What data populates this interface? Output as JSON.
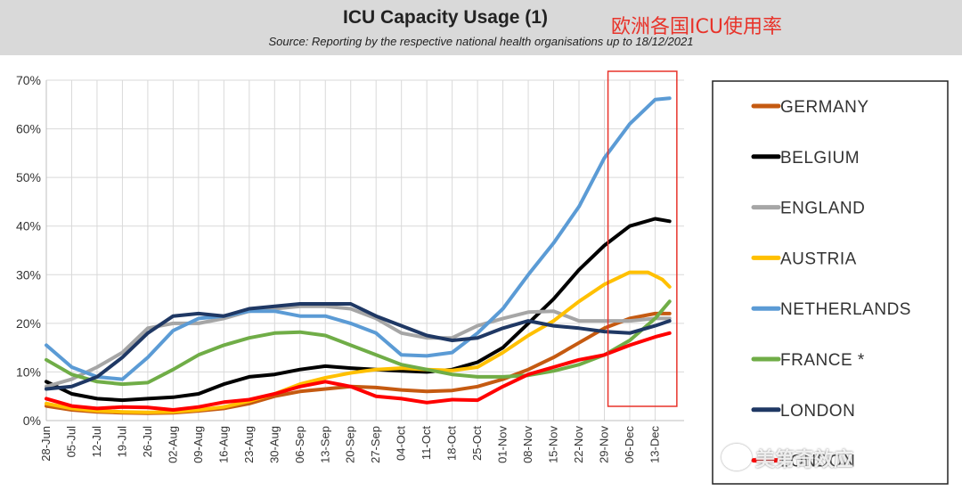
{
  "chart_data": {
    "type": "line",
    "title": "ICU Capacity Usage (1)",
    "subtitle": "Source: Reporting by the respective national health organisations up to 18/12/2021",
    "annotation_cn": "欧洲各国ICU使用率",
    "watermark": "美第奇效应",
    "ylim": [
      0,
      70
    ],
    "yticks": [
      0,
      10,
      20,
      30,
      40,
      50,
      60,
      70
    ],
    "ytick_labels": [
      "0%",
      "10%",
      "20%",
      "30%",
      "40%",
      "50%",
      "60%",
      "70%"
    ],
    "x_start_day": 0,
    "x_end_day": 176,
    "xtick_days": [
      0,
      7,
      14,
      21,
      28,
      35,
      42,
      49,
      56,
      63,
      70,
      77,
      84,
      91,
      98,
      105,
      112,
      119,
      126,
      133,
      140,
      147,
      154,
      161,
      168
    ],
    "xtick_labels": [
      "28-Jun",
      "05-Jul",
      "12-Jul",
      "19-Jul",
      "26-Jul",
      "02-Aug",
      "09-Aug",
      "16-Aug",
      "23-Aug",
      "30-Aug",
      "06-Sep",
      "13-Sep",
      "20-Sep",
      "27-Sep",
      "04-Oct",
      "11-Oct",
      "18-Oct",
      "25-Oct",
      "01-Nov",
      "08-Nov",
      "15-Nov",
      "22-Nov",
      "29-Nov",
      "06-Dec",
      "13-Dec"
    ],
    "highlight_days": [
      155,
      174
    ],
    "series": [
      {
        "name": "GERMANY",
        "color": "#c55a11",
        "width": 4,
        "points": [
          [
            0,
            3
          ],
          [
            7,
            2.2
          ],
          [
            14,
            1.8
          ],
          [
            21,
            1.6
          ],
          [
            28,
            1.5
          ],
          [
            35,
            1.6
          ],
          [
            42,
            2
          ],
          [
            49,
            2.5
          ],
          [
            56,
            3.5
          ],
          [
            63,
            5
          ],
          [
            70,
            6
          ],
          [
            77,
            6.5
          ],
          [
            84,
            7
          ],
          [
            91,
            6.8
          ],
          [
            98,
            6.3
          ],
          [
            105,
            6
          ],
          [
            112,
            6.2
          ],
          [
            119,
            7
          ],
          [
            126,
            8.5
          ],
          [
            133,
            10.5
          ],
          [
            140,
            13
          ],
          [
            147,
            16
          ],
          [
            154,
            19
          ],
          [
            161,
            21
          ],
          [
            168,
            22
          ],
          [
            172,
            22
          ]
        ]
      },
      {
        "name": "BELGIUM",
        "color": "#000000",
        "width": 4,
        "points": [
          [
            0,
            8
          ],
          [
            7,
            5.5
          ],
          [
            14,
            4.5
          ],
          [
            21,
            4.2
          ],
          [
            28,
            4.5
          ],
          [
            35,
            4.8
          ],
          [
            42,
            5.5
          ],
          [
            49,
            7.5
          ],
          [
            56,
            9
          ],
          [
            63,
            9.5
          ],
          [
            70,
            10.5
          ],
          [
            77,
            11.2
          ],
          [
            84,
            10.8
          ],
          [
            91,
            10.5
          ],
          [
            98,
            10.2
          ],
          [
            105,
            10
          ],
          [
            112,
            10.5
          ],
          [
            119,
            12
          ],
          [
            126,
            15
          ],
          [
            133,
            20
          ],
          [
            140,
            25
          ],
          [
            147,
            31
          ],
          [
            154,
            36
          ],
          [
            161,
            40
          ],
          [
            168,
            41.5
          ],
          [
            172,
            41
          ]
        ]
      },
      {
        "name": "ENGLAND",
        "color": "#a6a6a6",
        "width": 4,
        "points": [
          [
            0,
            7
          ],
          [
            7,
            8.5
          ],
          [
            14,
            11
          ],
          [
            21,
            14
          ],
          [
            28,
            19
          ],
          [
            35,
            20
          ],
          [
            42,
            20
          ],
          [
            49,
            21
          ],
          [
            56,
            22.5
          ],
          [
            63,
            23
          ],
          [
            70,
            23.5
          ],
          [
            77,
            23.5
          ],
          [
            84,
            23
          ],
          [
            91,
            21
          ],
          [
            98,
            18
          ],
          [
            105,
            17
          ],
          [
            112,
            17
          ],
          [
            119,
            19.5
          ],
          [
            126,
            21
          ],
          [
            133,
            22.3
          ],
          [
            140,
            22.5
          ],
          [
            147,
            20.5
          ],
          [
            154,
            20.5
          ],
          [
            161,
            20.5
          ],
          [
            168,
            21
          ],
          [
            172,
            21
          ]
        ]
      },
      {
        "name": "AUSTRIA",
        "color": "#ffc000",
        "width": 4,
        "points": [
          [
            0,
            3.5
          ],
          [
            7,
            2.5
          ],
          [
            14,
            2
          ],
          [
            21,
            1.8
          ],
          [
            28,
            1.7
          ],
          [
            35,
            1.8
          ],
          [
            42,
            2.2
          ],
          [
            49,
            2.8
          ],
          [
            56,
            4
          ],
          [
            63,
            5.5
          ],
          [
            70,
            7.5
          ],
          [
            77,
            8.8
          ],
          [
            84,
            9.8
          ],
          [
            91,
            10.5
          ],
          [
            98,
            10.8
          ],
          [
            105,
            10.5
          ],
          [
            112,
            10.3
          ],
          [
            119,
            11
          ],
          [
            126,
            14
          ],
          [
            133,
            17.5
          ],
          [
            140,
            20.5
          ],
          [
            147,
            24.5
          ],
          [
            154,
            28
          ],
          [
            161,
            30.5
          ],
          [
            166,
            30.5
          ],
          [
            170,
            29
          ],
          [
            172,
            27.5
          ]
        ]
      },
      {
        "name": "NETHERLANDS",
        "color": "#5b9bd5",
        "width": 4,
        "points": [
          [
            0,
            15.5
          ],
          [
            7,
            11
          ],
          [
            14,
            9
          ],
          [
            21,
            8.5
          ],
          [
            28,
            13
          ],
          [
            35,
            18.5
          ],
          [
            42,
            21
          ],
          [
            49,
            21.5
          ],
          [
            56,
            22.5
          ],
          [
            63,
            22.5
          ],
          [
            70,
            21.5
          ],
          [
            77,
            21.5
          ],
          [
            84,
            20
          ],
          [
            91,
            18
          ],
          [
            98,
            13.5
          ],
          [
            105,
            13.3
          ],
          [
            112,
            14
          ],
          [
            119,
            18
          ],
          [
            126,
            23
          ],
          [
            133,
            30
          ],
          [
            140,
            36.5
          ],
          [
            147,
            44
          ],
          [
            154,
            54
          ],
          [
            161,
            61
          ],
          [
            168,
            66
          ],
          [
            172,
            66.3
          ]
        ]
      },
      {
        "name": "FRANCE *",
        "color": "#70ad47",
        "width": 4,
        "points": [
          [
            0,
            12.5
          ],
          [
            7,
            9.5
          ],
          [
            14,
            8
          ],
          [
            21,
            7.5
          ],
          [
            28,
            7.8
          ],
          [
            35,
            10.5
          ],
          [
            42,
            13.5
          ],
          [
            49,
            15.5
          ],
          [
            56,
            17
          ],
          [
            63,
            18
          ],
          [
            70,
            18.2
          ],
          [
            77,
            17.5
          ],
          [
            84,
            15.5
          ],
          [
            91,
            13.5
          ],
          [
            98,
            11.5
          ],
          [
            105,
            10.5
          ],
          [
            112,
            9.5
          ],
          [
            119,
            9
          ],
          [
            126,
            9
          ],
          [
            133,
            9.3
          ],
          [
            140,
            10.2
          ],
          [
            147,
            11.5
          ],
          [
            154,
            13.5
          ],
          [
            161,
            16.5
          ],
          [
            168,
            21
          ],
          [
            172,
            24.5
          ]
        ]
      },
      {
        "name": "LONDON",
        "color": "#1f3864",
        "width": 4,
        "points": [
          [
            0,
            6.5
          ],
          [
            7,
            7
          ],
          [
            14,
            9
          ],
          [
            21,
            13
          ],
          [
            28,
            18
          ],
          [
            35,
            21.5
          ],
          [
            42,
            22
          ],
          [
            49,
            21.5
          ],
          [
            56,
            23
          ],
          [
            63,
            23.5
          ],
          [
            70,
            24
          ],
          [
            77,
            24
          ],
          [
            84,
            24
          ],
          [
            91,
            21.5
          ],
          [
            98,
            19.5
          ],
          [
            105,
            17.5
          ],
          [
            112,
            16.5
          ],
          [
            119,
            17
          ],
          [
            126,
            19
          ],
          [
            133,
            20.5
          ],
          [
            140,
            19.5
          ],
          [
            147,
            19
          ],
          [
            154,
            18.3
          ],
          [
            161,
            18
          ],
          [
            168,
            19.5
          ],
          [
            172,
            20.5
          ]
        ]
      },
      {
        "name": "LONDON",
        "color": "#ff0000",
        "width": 4,
        "points": [
          [
            0,
            4.5
          ],
          [
            7,
            3
          ],
          [
            14,
            2.5
          ],
          [
            21,
            2.8
          ],
          [
            28,
            2.7
          ],
          [
            35,
            2.2
          ],
          [
            42,
            2.8
          ],
          [
            49,
            3.8
          ],
          [
            56,
            4.3
          ],
          [
            63,
            5.5
          ],
          [
            70,
            7
          ],
          [
            77,
            8
          ],
          [
            84,
            7
          ],
          [
            91,
            5
          ],
          [
            98,
            4.5
          ],
          [
            105,
            3.7
          ],
          [
            112,
            4.3
          ],
          [
            119,
            4.2
          ],
          [
            126,
            7
          ],
          [
            133,
            9.5
          ],
          [
            140,
            11
          ],
          [
            147,
            12.5
          ],
          [
            154,
            13.5
          ],
          [
            161,
            15.5
          ],
          [
            168,
            17.2
          ],
          [
            172,
            18
          ]
        ]
      }
    ],
    "legend": {
      "placement": "right",
      "entries": [
        "GERMANY",
        "BELGIUM",
        "ENGLAND",
        "AUSTRIA",
        "NETHERLANDS",
        "FRANCE *",
        "LONDON",
        "LONDON"
      ]
    }
  }
}
